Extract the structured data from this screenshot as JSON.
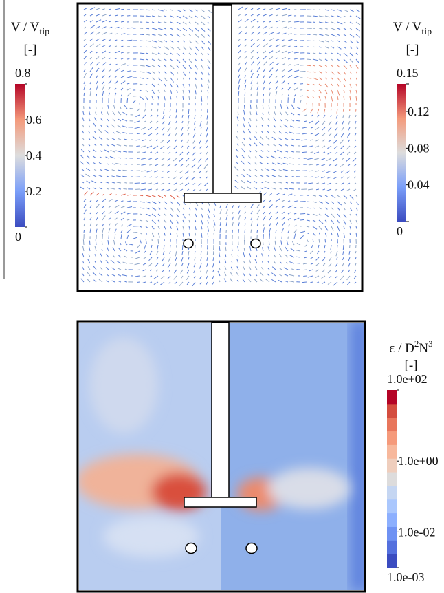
{
  "panels": [
    {
      "colorbars": [
        {
          "title": {
            "main": "V / V",
            "sub": "tip"
          },
          "unit": "[-]",
          "lim": [
            0,
            0.8
          ],
          "ticks": [
            0.8,
            0.6,
            0.4,
            0.2,
            0
          ],
          "log": false
        },
        {
          "title": {
            "main": "V / V",
            "sub": "tip"
          },
          "unit": "[-]",
          "lim": [
            0,
            0.15
          ],
          "ticks": [
            0.15,
            0.12,
            0.08,
            0.04,
            0
          ],
          "log": false
        }
      ]
    },
    {
      "colorbars": [
        {
          "title": {
            "main": "ε / D",
            "sup1": "2",
            "mid": "N",
            "sup2": "3"
          },
          "unit": "[-]",
          "lim": [
            0.001,
            100
          ],
          "ticks": [
            {
              "value": 100,
              "label": "1.0e+02"
            },
            {
              "value": 1,
              "label": "1.0e+00"
            },
            {
              "value": 0.01,
              "label": "1.0e-02"
            },
            {
              "value": 0.001,
              "label": "1.0e-03"
            }
          ],
          "log": true
        }
      ]
    }
  ]
}
